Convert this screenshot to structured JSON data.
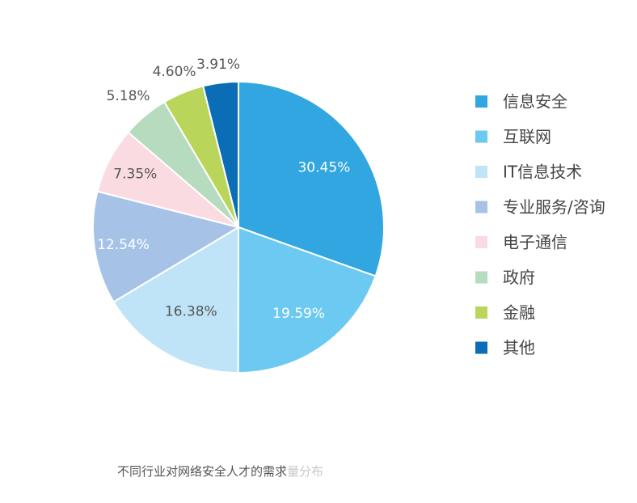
{
  "chart_data": {
    "type": "pie",
    "title": "",
    "slices": [
      {
        "label": "信息安全",
        "value": 30.45,
        "value_label": "30.45%",
        "color": "#31a6e0"
      },
      {
        "label": "互联网",
        "value": 19.59,
        "value_label": "19.59%",
        "color": "#6cc9f2"
      },
      {
        "label": "IT信息技术",
        "value": 16.38,
        "value_label": "16.38%",
        "color": "#bfe4f7"
      },
      {
        "label": "专业服务/咨询",
        "value": 12.54,
        "value_label": "12.54%",
        "color": "#a6c3e7"
      },
      {
        "label": "电子通信",
        "value": 7.35,
        "value_label": "7.35%",
        "color": "#fadbe1"
      },
      {
        "label": "政府",
        "value": 5.18,
        "value_label": "5.18%",
        "color": "#b6dbbe"
      },
      {
        "label": "金融",
        "value": 4.6,
        "value_label": "4.60%",
        "color": "#b9d65a"
      },
      {
        "label": "其他",
        "value": 3.91,
        "value_label": "3.91%",
        "color": "#0a6db5"
      }
    ],
    "legend_position": "right"
  },
  "caption": {
    "text": "不同行业对网络安全人才的需求",
    "faded_text": "量分布"
  }
}
